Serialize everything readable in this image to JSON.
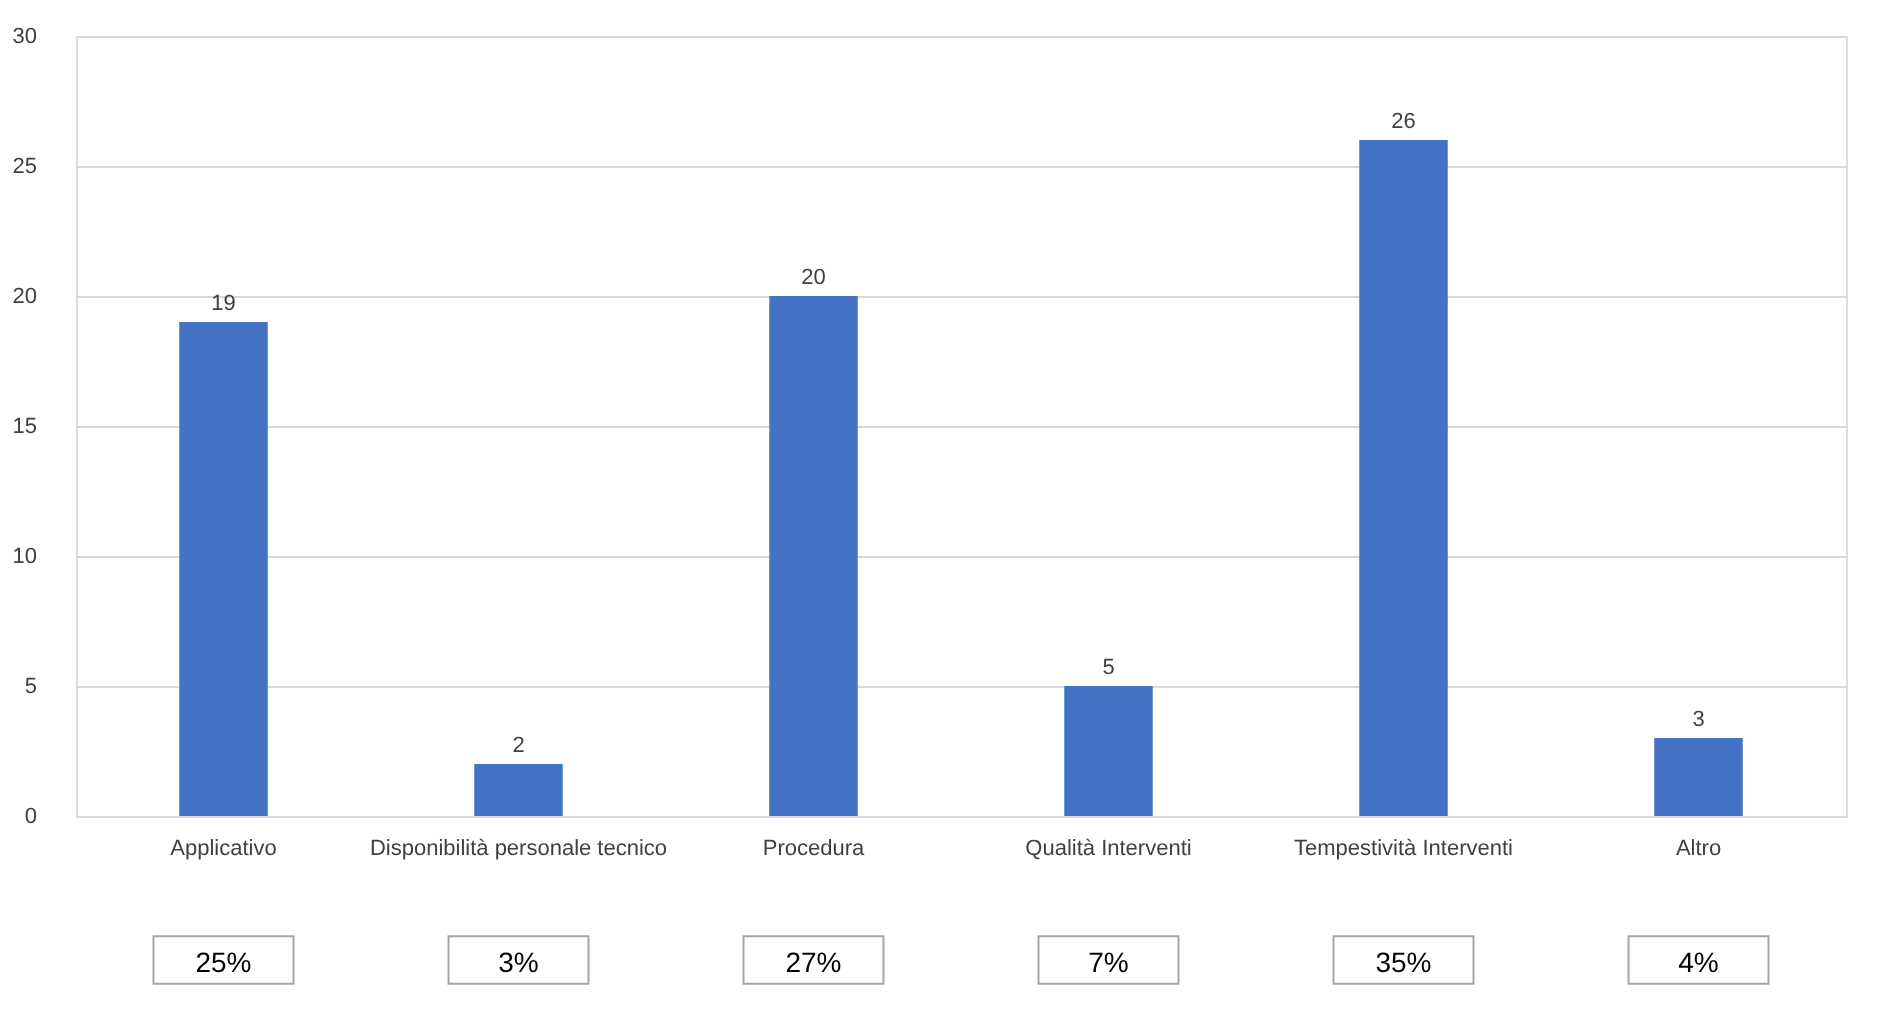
{
  "chart_data": {
    "type": "bar",
    "categories": [
      "Applicativo",
      "Disponibilità personale tecnico",
      "Procedura",
      "Qualità Interventi",
      "Tempestività Interventi",
      "Altro"
    ],
    "values": [
      19,
      2,
      20,
      5,
      26,
      3
    ],
    "color": "#4472c4",
    "ylim": [
      0,
      30
    ],
    "yticks": [
      0,
      5,
      10,
      15,
      20,
      25,
      30
    ],
    "grid": "y",
    "data_labels": true,
    "annotations": [
      "25%",
      "3%",
      "27%",
      "7%",
      "35%",
      "4%"
    ]
  }
}
